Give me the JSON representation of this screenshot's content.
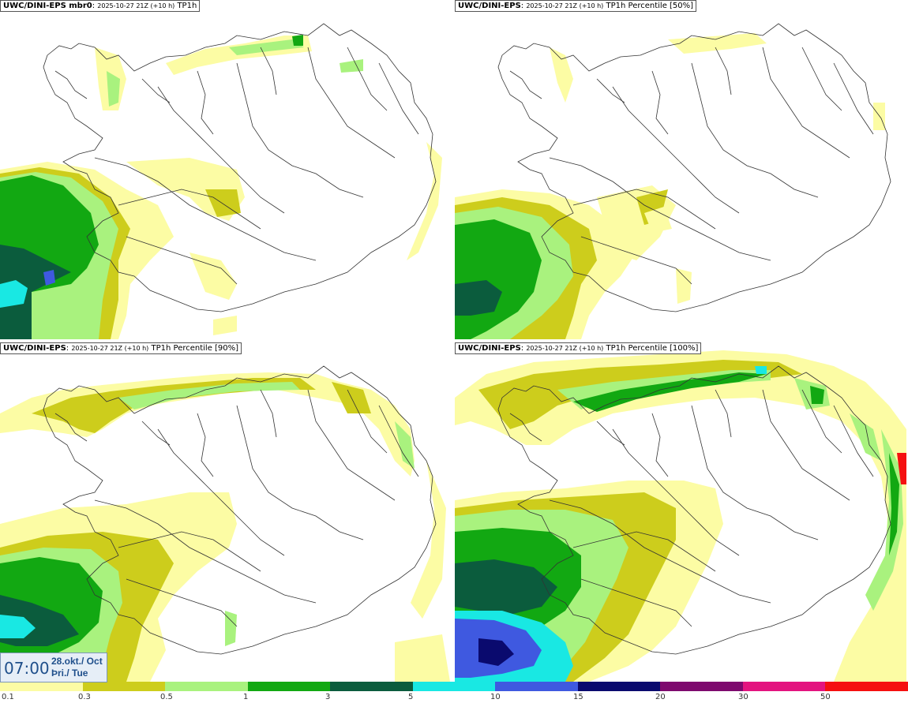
{
  "panels": [
    {
      "model": "UWC/DINI-EPS",
      "member": " mbr0",
      "sep": ":",
      "run": "2025-10-27 21Z (+10 h)",
      "field": "TP1h"
    },
    {
      "model": "UWC/DINI-EPS",
      "member": "",
      "sep": ":",
      "run": "2025-10-27 21Z (+10 h)",
      "field": "TP1h Percentile [50%]"
    },
    {
      "model": "UWC/DINI-EPS",
      "member": "",
      "sep": ":",
      "run": "2025-10-27 21Z (+10 h)",
      "field": "TP1h Percentile [90%]"
    },
    {
      "model": "UWC/DINI-EPS",
      "member": "",
      "sep": ":",
      "run": "2025-10-27 21Z (+10 h)",
      "field": "TP1h Percentile [100%]"
    }
  ],
  "valid_time": {
    "time": "07:00",
    "date_line": "28.okt./ Oct",
    "day_line": "Þri./ Tue"
  },
  "colorscale": {
    "colors": [
      "#fcfca4",
      "#cdcd1c",
      "#a9f27e",
      "#12a812",
      "#0b5c3d",
      "#19e8e3",
      "#3f59e0",
      "#0a0a6e",
      "#7e0a6e",
      "#e3147f",
      "#f51010"
    ],
    "labels": [
      "0.1",
      "0.3",
      "0.5",
      "1",
      "3",
      "5",
      "10",
      "15",
      "20",
      "30",
      "50"
    ]
  }
}
